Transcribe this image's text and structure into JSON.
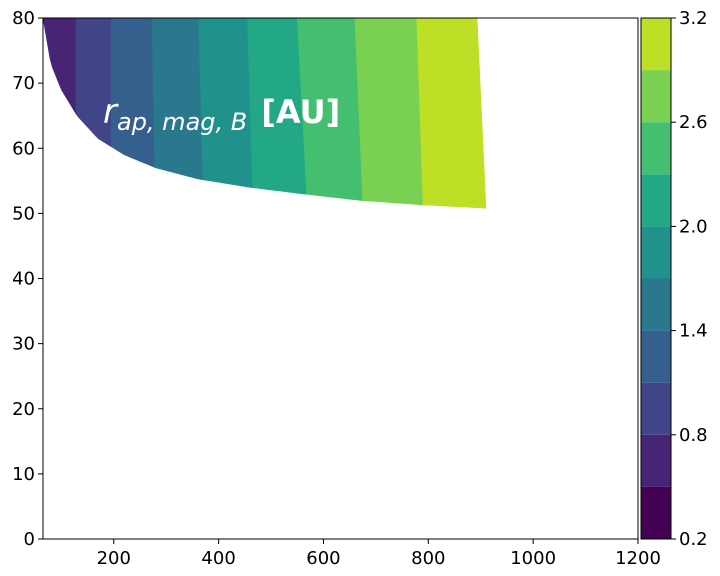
{
  "chart_data": {
    "type": "contourf",
    "annotation": {
      "symbol": "r",
      "subscript": "ap, mag, B",
      "unit": "[AU]"
    },
    "x": {
      "lim": [
        65,
        1200
      ],
      "ticks": [
        200,
        400,
        600,
        800,
        1000,
        1200
      ],
      "tick_labels": [
        "200",
        "400",
        "600",
        "800",
        "1000",
        "1200"
      ]
    },
    "y": {
      "lim": [
        0,
        80
      ],
      "ticks": [
        0,
        10,
        20,
        30,
        40,
        50,
        60,
        70,
        80
      ],
      "tick_labels": [
        "0",
        "10",
        "20",
        "30",
        "40",
        "50",
        "60",
        "70",
        "80"
      ]
    },
    "colorbar": {
      "levels": [
        0.2,
        0.5,
        0.8,
        1.1,
        1.4,
        1.7,
        2.0,
        2.3,
        2.6,
        2.9,
        3.2
      ],
      "ticks": [
        0.2,
        0.8,
        1.4,
        2.0,
        2.6,
        3.2
      ],
      "tick_labels": [
        "0.2",
        "0.8",
        "1.4",
        "2.0",
        "2.6",
        "3.2"
      ],
      "colors": [
        "#440154",
        "#482475",
        "#414487",
        "#355f8d",
        "#2a788e",
        "#21918c",
        "#22a884",
        "#44bf70",
        "#7ad151",
        "#bddf26",
        "#fde725"
      ]
    },
    "bands": [
      {
        "level_index": 1,
        "x_top": [
          65,
          128
        ],
        "x_bottom": [
          65,
          128
        ]
      },
      {
        "level_index": 2,
        "x_top": [
          128,
          195
        ],
        "x_bottom": [
          128,
          195
        ]
      },
      {
        "level_index": 3,
        "x_top": [
          195,
          273
        ],
        "x_bottom": [
          195,
          278
        ]
      },
      {
        "level_index": 4,
        "x_top": [
          273,
          362
        ],
        "x_bottom": [
          278,
          370
        ]
      },
      {
        "level_index": 5,
        "x_top": [
          362,
          455
        ],
        "x_bottom": [
          370,
          465
        ]
      },
      {
        "level_index": 6,
        "x_top": [
          455,
          550
        ],
        "x_bottom": [
          465,
          568
        ]
      },
      {
        "level_index": 7,
        "x_top": [
          550,
          660
        ],
        "x_bottom": [
          568,
          675
        ]
      },
      {
        "level_index": 8,
        "x_top": [
          660,
          778
        ],
        "x_bottom": [
          675,
          790
        ]
      },
      {
        "level_index": 9,
        "x_top": [
          778,
          893
        ],
        "x_bottom": [
          790,
          910
        ]
      }
    ],
    "lower_boundary": [
      [
        65,
        80
      ],
      [
        80,
        73
      ],
      [
        100,
        69
      ],
      [
        130,
        65
      ],
      [
        170,
        61.5
      ],
      [
        220,
        59
      ],
      [
        280,
        57
      ],
      [
        360,
        55.3
      ],
      [
        460,
        54
      ],
      [
        560,
        53
      ],
      [
        670,
        52
      ],
      [
        790,
        51.3
      ],
      [
        910,
        50.8
      ]
    ],
    "upper_y": 80,
    "right_boundary": [
      [
        893,
        80
      ],
      [
        910,
        50.8
      ]
    ]
  }
}
